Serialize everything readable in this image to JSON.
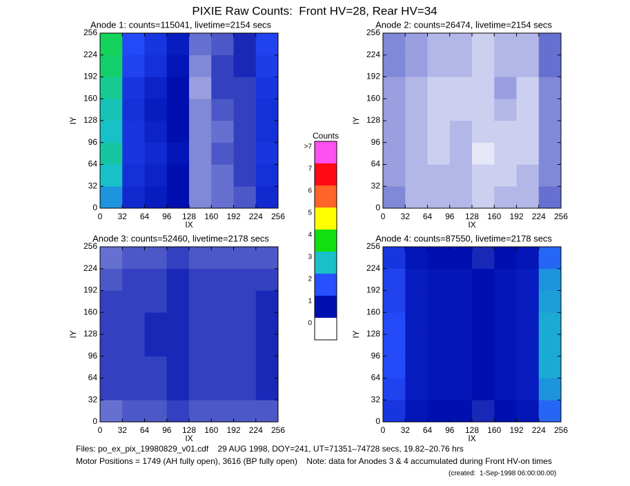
{
  "title": "PIXIE Raw Counts:  Front HV=28, Rear HV=34",
  "chart_data": [
    {
      "type": "heatmap",
      "title": "Anode 1: counts=115041, livetime=2154 secs",
      "xlabel": "IX",
      "ylabel": "IY",
      "xlim": [
        0,
        256
      ],
      "ylim": [
        0,
        256
      ],
      "xticks": [
        0,
        32,
        64,
        96,
        128,
        160,
        192,
        224,
        256
      ],
      "yticks": [
        0,
        32,
        64,
        96,
        128,
        160,
        192,
        224,
        256
      ],
      "z": [
        [
          2.6,
          1.4,
          1.2,
          1.0,
          0.5,
          0.6,
          0.7,
          1.4
        ],
        [
          3.0,
          1.5,
          1.3,
          1.0,
          0.5,
          0.6,
          0.8,
          1.5
        ],
        [
          3.2,
          1.6,
          1.4,
          1.1,
          0.5,
          0.7,
          0.8,
          1.6
        ],
        [
          3.0,
          1.6,
          1.3,
          1.0,
          0.5,
          0.6,
          0.8,
          1.5
        ],
        [
          3.1,
          1.5,
          1.2,
          1.0,
          0.5,
          0.7,
          0.8,
          1.5
        ],
        [
          3.3,
          1.6,
          1.3,
          1.0,
          0.4,
          0.8,
          0.8,
          1.6
        ],
        [
          3.5,
          1.8,
          1.5,
          1.1,
          0.5,
          0.8,
          0.9,
          1.7
        ],
        [
          3.6,
          1.9,
          1.6,
          1.2,
          0.6,
          0.7,
          0.9,
          1.8
        ]
      ]
    },
    {
      "type": "heatmap",
      "title": "Anode 2: counts=26474, livetime=2154 secs",
      "xlabel": "IX",
      "ylabel": "IY",
      "xlim": [
        0,
        256
      ],
      "ylim": [
        0,
        256
      ],
      "xticks": [
        0,
        32,
        64,
        96,
        128,
        160,
        192,
        224,
        256
      ],
      "yticks": [
        0,
        32,
        64,
        96,
        128,
        160,
        192,
        224,
        256
      ],
      "z": [
        [
          0.5,
          0.3,
          0.3,
          0.3,
          0.2,
          0.3,
          0.3,
          0.6
        ],
        [
          0.4,
          0.3,
          0.3,
          0.3,
          0.2,
          0.2,
          0.3,
          0.5
        ],
        [
          0.4,
          0.3,
          0.2,
          0.3,
          0.1,
          0.2,
          0.2,
          0.5
        ],
        [
          0.4,
          0.3,
          0.2,
          0.3,
          0.2,
          0.2,
          0.2,
          0.5
        ],
        [
          0.4,
          0.3,
          0.2,
          0.2,
          0.2,
          0.3,
          0.2,
          0.5
        ],
        [
          0.4,
          0.3,
          0.2,
          0.2,
          0.2,
          0.4,
          0.2,
          0.5
        ],
        [
          0.5,
          0.4,
          0.3,
          0.3,
          0.2,
          0.3,
          0.3,
          0.6
        ],
        [
          0.5,
          0.4,
          0.3,
          0.3,
          0.2,
          0.3,
          0.3,
          0.6
        ]
      ]
    },
    {
      "type": "heatmap",
      "title": "Anode 3: counts=52460, livetime=2178 secs",
      "xlabel": "IX",
      "ylabel": "IY",
      "xlim": [
        0,
        256
      ],
      "ylim": [
        0,
        256
      ],
      "xticks": [
        0,
        32,
        64,
        96,
        128,
        160,
        192,
        224,
        256
      ],
      "yticks": [
        0,
        32,
        64,
        96,
        128,
        160,
        192,
        224,
        256
      ],
      "z": [
        [
          0.6,
          0.7,
          0.7,
          0.8,
          0.7,
          0.7,
          0.7,
          0.7
        ],
        [
          0.8,
          0.8,
          0.8,
          0.9,
          0.8,
          0.8,
          0.8,
          0.9
        ],
        [
          0.8,
          0.8,
          0.8,
          0.9,
          0.8,
          0.8,
          0.8,
          0.9
        ],
        [
          0.8,
          0.8,
          0.9,
          0.9,
          0.8,
          0.8,
          0.8,
          0.9
        ],
        [
          0.8,
          0.8,
          0.9,
          0.9,
          0.8,
          0.8,
          0.8,
          0.9
        ],
        [
          0.8,
          0.8,
          0.8,
          0.9,
          0.8,
          0.8,
          0.8,
          0.9
        ],
        [
          0.7,
          0.8,
          0.8,
          0.9,
          0.8,
          0.8,
          0.8,
          0.8
        ],
        [
          0.6,
          0.7,
          0.7,
          0.8,
          0.7,
          0.7,
          0.7,
          0.7
        ]
      ]
    },
    {
      "type": "heatmap",
      "title": "Anode 4: counts=87550, livetime=2178 secs",
      "xlabel": "IX",
      "ylabel": "IY",
      "xlim": [
        0,
        256
      ],
      "ylim": [
        0,
        256
      ],
      "xticks": [
        0,
        32,
        64,
        96,
        128,
        160,
        192,
        224,
        256
      ],
      "yticks": [
        0,
        32,
        64,
        96,
        128,
        160,
        192,
        224,
        256
      ],
      "z": [
        [
          1.6,
          1.1,
          1.0,
          1.0,
          0.9,
          1.0,
          1.1,
          2.2
        ],
        [
          1.8,
          1.2,
          1.1,
          1.1,
          1.0,
          1.1,
          1.2,
          2.6
        ],
        [
          1.9,
          1.2,
          1.1,
          1.1,
          1.0,
          1.1,
          1.2,
          2.8
        ],
        [
          1.9,
          1.2,
          1.1,
          1.1,
          1.0,
          1.1,
          1.2,
          2.8
        ],
        [
          1.9,
          1.2,
          1.1,
          1.1,
          1.0,
          1.1,
          1.2,
          2.8
        ],
        [
          1.8,
          1.2,
          1.1,
          1.1,
          1.0,
          1.1,
          1.2,
          2.7
        ],
        [
          1.8,
          1.2,
          1.1,
          1.1,
          1.0,
          1.1,
          1.2,
          2.6
        ],
        [
          1.6,
          1.1,
          1.0,
          1.0,
          0.9,
          1.0,
          1.1,
          2.2
        ]
      ]
    }
  ],
  "colorbar": {
    "title": "Counts",
    "bins": [
      {
        "label": "0",
        "color": "#ffffff"
      },
      {
        "label": "1",
        "color": "#0010b0"
      },
      {
        "label": "2",
        "color": "#2850ff"
      },
      {
        "label": "3",
        "color": "#18c0c8"
      },
      {
        "label": "4",
        "color": "#10e010"
      },
      {
        "label": "5",
        "color": "#ffff00"
      },
      {
        "label": "6",
        "color": "#ff6428"
      },
      {
        "label": "7",
        "color": "#ff0a14"
      },
      {
        "label": ">7",
        "color": "#ff50f0"
      }
    ]
  },
  "footer": {
    "files": "Files: po_ex_pix_19980829_v01.cdf    29 AUG 1998, DOY=241, UT=71351–74728 secs, 19.82–20.76 hrs",
    "motor": "Motor Positions = 1749 (AH fully open), 3616 (BP fully open)    Note: data for Anodes 3 & 4 accumulated during Front HV-on times",
    "created": "(created:  1-Sep-1998 06:00:00.00)"
  }
}
